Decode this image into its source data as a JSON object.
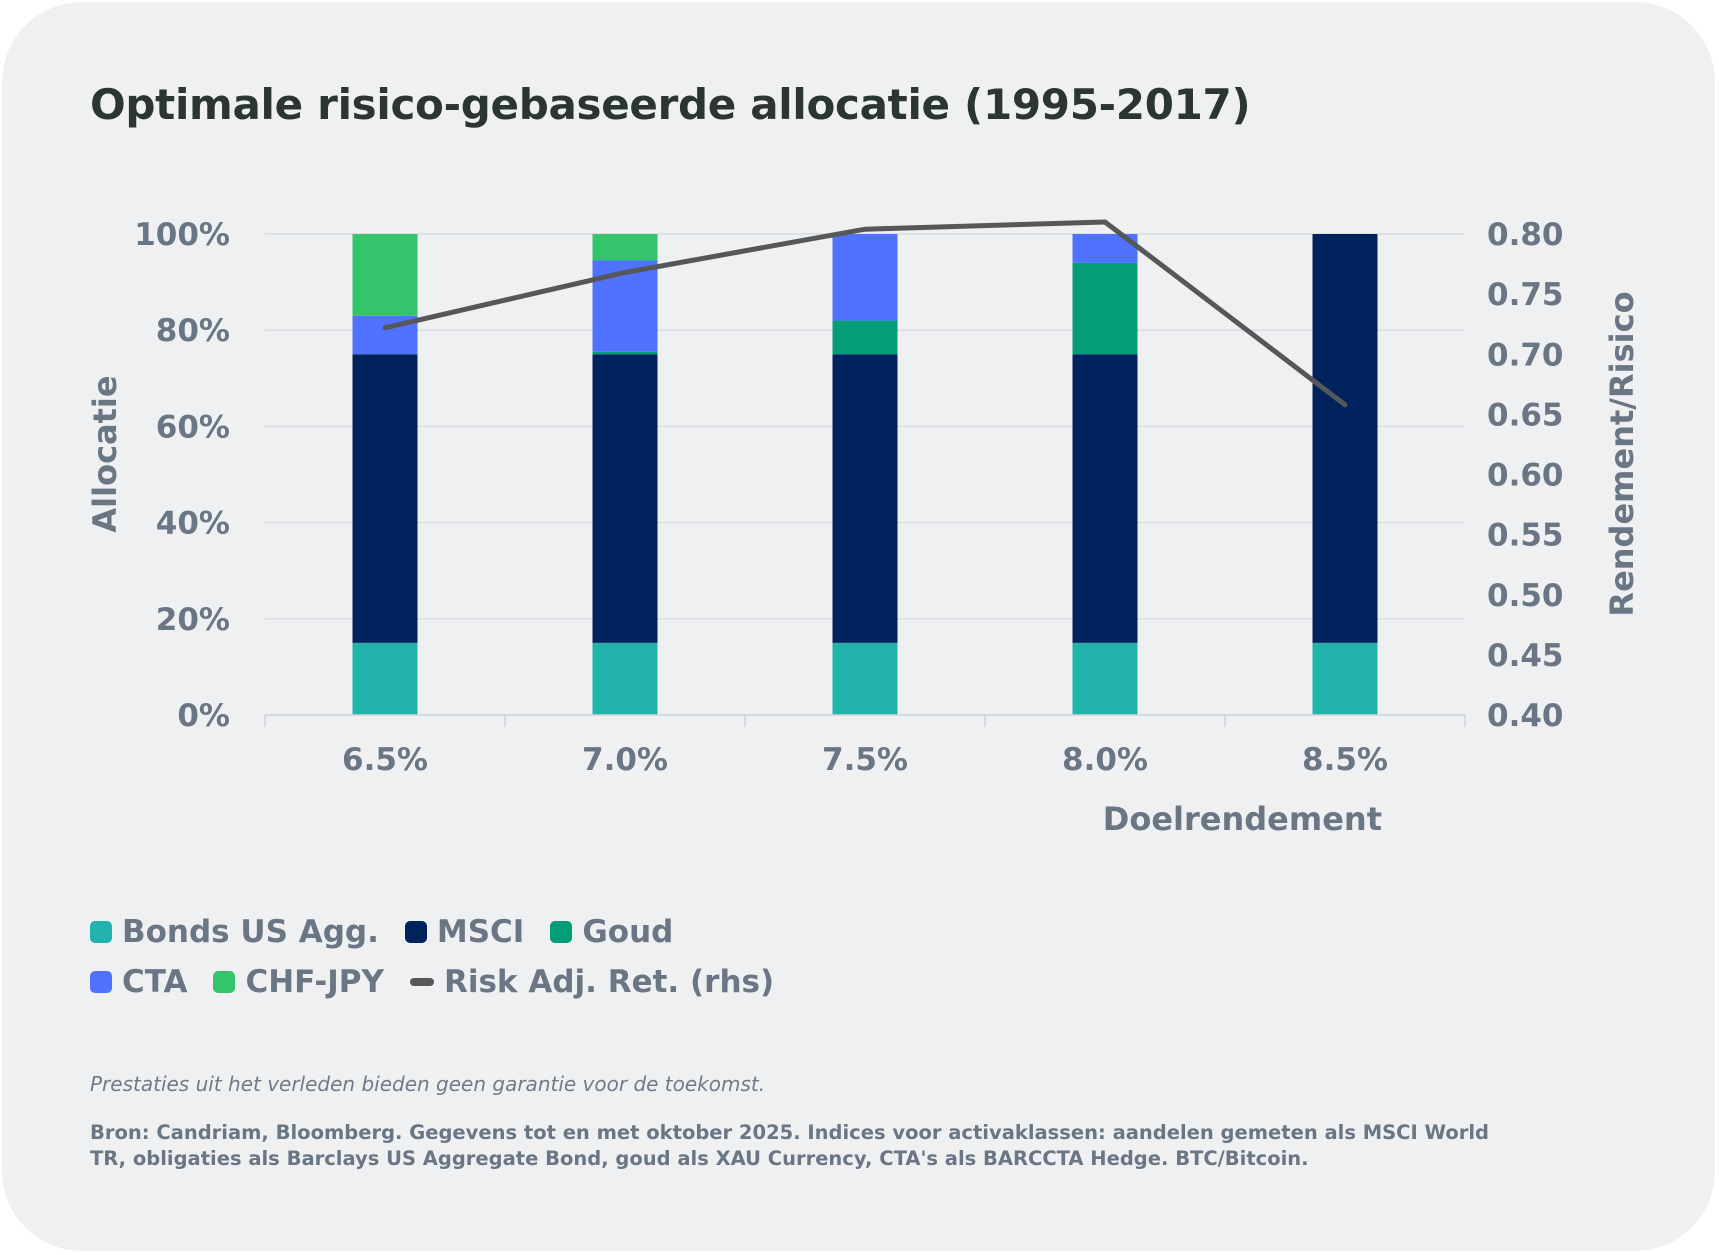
{
  "title": "Optimale risico-gebaseerde allocatie (1995-2017)",
  "chart_data": {
    "type": "bar",
    "stacked": true,
    "title": "Optimale risico-gebaseerde allocatie (1995-2017)",
    "xlabel": "Doelrendement",
    "ylabel": "Allocatie",
    "y2label": "Rendement/Risico",
    "categories": [
      "6.5%",
      "7.0%",
      "7.5%",
      "8.0%",
      "8.5%"
    ],
    "ylim": [
      0,
      100
    ],
    "yticks": [
      "0%",
      "20%",
      "40%",
      "60%",
      "80%",
      "100%"
    ],
    "y2lim": [
      0.4,
      0.8
    ],
    "y2ticks": [
      "0.40",
      "0.45",
      "0.50",
      "0.55",
      "0.60",
      "0.65",
      "0.70",
      "0.75",
      "0.80"
    ],
    "grid": true,
    "legend_position": "bottom",
    "series": [
      {
        "name": "Bonds US Agg.",
        "color": "#22b3ad",
        "values": [
          15,
          15,
          15,
          15,
          15
        ]
      },
      {
        "name": "MSCI",
        "color": "#00235e",
        "values": [
          60,
          60,
          60,
          60,
          85
        ]
      },
      {
        "name": "Goud",
        "color": "#039e78",
        "values": [
          0,
          0.5,
          7,
          19,
          0
        ]
      },
      {
        "name": "CTA",
        "color": "#4f73ff",
        "values": [
          8,
          19,
          18,
          6,
          0
        ]
      },
      {
        "name": "CHF-JPY",
        "color": "#34c56c",
        "values": [
          17,
          5.5,
          0,
          0,
          0
        ]
      }
    ],
    "line_series": {
      "name": "Risk Adj. Ret. (rhs)",
      "color": "#555759",
      "axis": "right",
      "values": [
        0.722,
        0.768,
        0.804,
        0.81,
        0.658
      ]
    }
  },
  "legend": {
    "rows": [
      [
        {
          "label": "Bonds US Agg.",
          "color": "#22b3ad",
          "kind": "box"
        },
        {
          "label": "MSCI",
          "color": "#00235e",
          "kind": "box"
        },
        {
          "label": "Goud",
          "color": "#039e78",
          "kind": "box"
        }
      ],
      [
        {
          "label": "CTA",
          "color": "#4f73ff",
          "kind": "box"
        },
        {
          "label": "CHF-JPY",
          "color": "#34c56c",
          "kind": "box"
        },
        {
          "label": "Risk Adj. Ret. (rhs)",
          "color": "#555759",
          "kind": "line"
        }
      ]
    ]
  },
  "footer": {
    "disclaimer": "Prestaties uit het verleden bieden geen garantie voor de toekomst.",
    "source": "Bron: Candriam, Bloomberg. Gegevens tot en met oktober 2025. Indices voor activaklassen: aandelen gemeten als MSCI World TR, obligaties als Barclays US Aggregate Bond, goud als XAU Currency, CTA's als BARCCTA Hedge. BTC/Bitcoin."
  }
}
